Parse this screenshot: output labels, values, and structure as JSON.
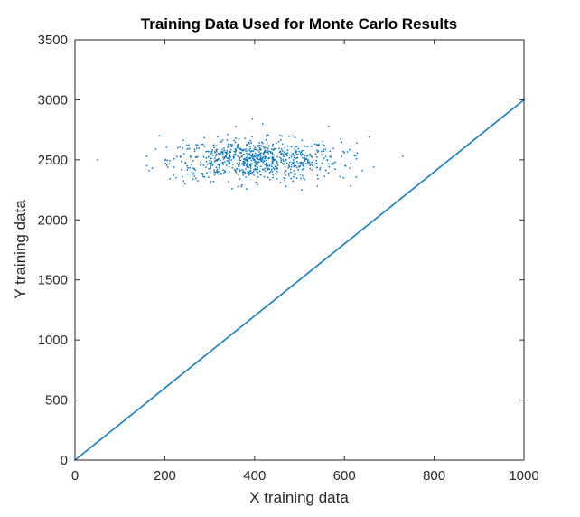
{
  "chart_data": {
    "type": "scatter",
    "title": "Training Data Used for Monte Carlo Results",
    "xlabel": "X training data",
    "ylabel": "Y training data",
    "xlim": [
      0,
      1000
    ],
    "ylim": [
      0,
      3500
    ],
    "x_ticks": [
      "0",
      "200",
      "400",
      "600",
      "800",
      "1000"
    ],
    "y_ticks": [
      "0",
      "500",
      "1000",
      "1500",
      "2000",
      "2500",
      "3000",
      "3500"
    ],
    "grid": false,
    "legend": "none",
    "marker_color": "#0072BD",
    "series": [
      {
        "description": "linear set",
        "relation": "y = 3x",
        "x_range": [
          0,
          1000
        ]
      },
      {
        "description": "cluster",
        "center": [
          400,
          2500
        ],
        "x_range": [
          50,
          730
        ],
        "y_range": [
          2250,
          2840
        ],
        "points": [
          [
            50,
            2500
          ],
          [
            160,
            2530
          ],
          [
            160,
            2450
          ],
          [
            165,
            2410
          ],
          [
            172,
            2430
          ],
          [
            180,
            2590
          ],
          [
            188,
            2700
          ],
          [
            730,
            2530
          ],
          [
            665,
            2440
          ],
          [
            655,
            2690
          ],
          [
            640,
            2410
          ],
          [
            628,
            2640
          ],
          [
            612,
            2430
          ],
          [
            600,
            2560
          ],
          [
            598,
            2350
          ],
          [
            395,
            2840
          ],
          [
            418,
            2800
          ],
          [
            565,
            2780
          ],
          [
            505,
            2250
          ],
          [
            350,
            2260
          ],
          [
            372,
            2290
          ],
          [
            470,
            2280
          ],
          [
            540,
            2280
          ],
          [
            245,
            2300
          ],
          [
            225,
            2350
          ],
          [
            262,
            2380
          ],
          [
            590,
            2360
          ]
        ]
      }
    ]
  }
}
